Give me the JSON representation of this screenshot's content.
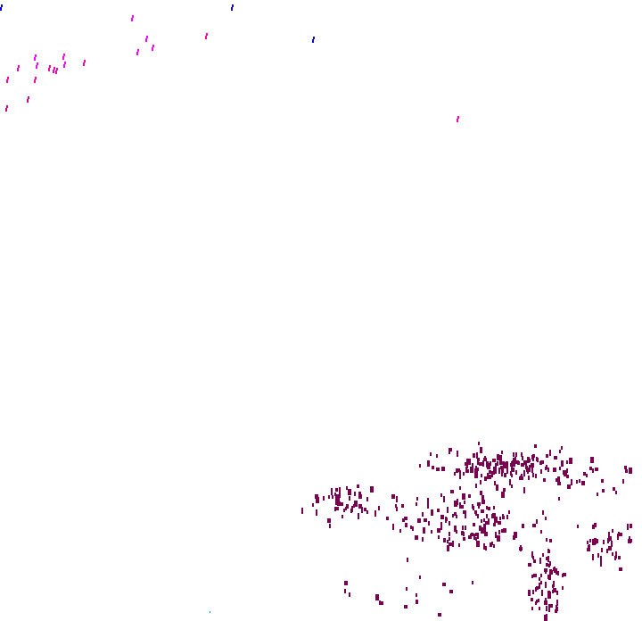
{
  "colors": {
    "background": "#ffffff",
    "blue": "#0a0acc",
    "magenta": "#ff00ff",
    "pink": "#ff00aa",
    "deep_pink": "#cc0088",
    "maroon": "#7a0050",
    "teal": "#00a0a0"
  }
}
